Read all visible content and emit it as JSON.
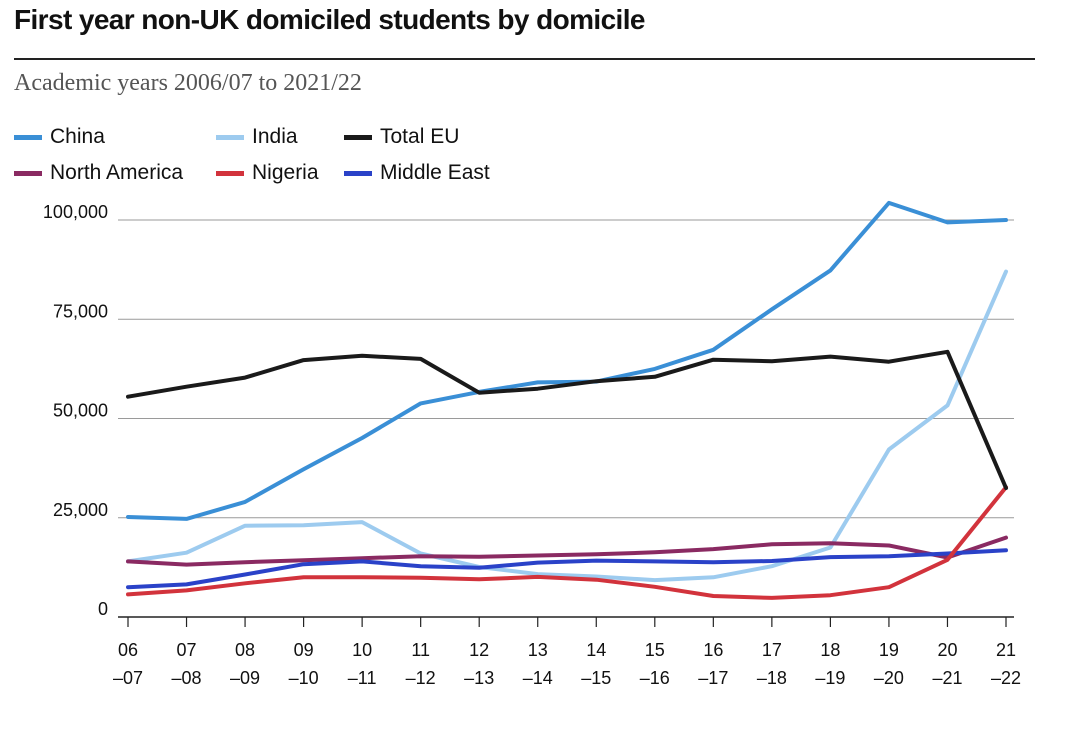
{
  "title": "First year non-UK domiciled students by domicile",
  "subtitle": "Academic years 2006/07 to 2021/22",
  "chart_data": {
    "type": "line",
    "title": "First year non-UK domiciled students by domicile",
    "subtitle": "Academic years 2006/07 to 2021/22",
    "xlabel": "",
    "ylabel": "",
    "ylim": [
      0,
      100000
    ],
    "y_ticks": [
      0,
      25000,
      50000,
      75000,
      100000
    ],
    "y_tick_labels": [
      "0",
      "25,000",
      "50,000",
      "75,000",
      "100,000"
    ],
    "categories_top": [
      "06",
      "07",
      "08",
      "09",
      "10",
      "11",
      "12",
      "13",
      "14",
      "15",
      "16",
      "17",
      "18",
      "19",
      "20",
      "21"
    ],
    "categories_bottom": [
      "–07",
      "–08",
      "–09",
      "–10",
      "–11",
      "–12",
      "–13",
      "–14",
      "–15",
      "–16",
      "–17",
      "–18",
      "–19",
      "–20",
      "–21",
      "–22"
    ],
    "grid": true,
    "series": [
      {
        "name": "China",
        "color": "#3a8fd6",
        "values": [
          25200,
          24700,
          29000,
          37200,
          45100,
          53800,
          56700,
          59100,
          59300,
          62500,
          67300,
          77500,
          87300,
          104300,
          99400,
          100000
        ]
      },
      {
        "name": "India",
        "color": "#9dcbef",
        "values": [
          14000,
          16200,
          23000,
          23100,
          23900,
          16000,
          12600,
          10800,
          10200,
          9300,
          10000,
          12800,
          17500,
          42200,
          53300,
          87000
        ]
      },
      {
        "name": "Total EU",
        "color": "#1a1a1a",
        "values": [
          55500,
          58000,
          60300,
          64700,
          65800,
          65000,
          56500,
          57500,
          59400,
          60500,
          64800,
          64400,
          65600,
          64300,
          66800,
          32500
        ]
      },
      {
        "name": "North America",
        "color": "#8a2a62",
        "values": [
          14000,
          13200,
          13800,
          14300,
          14800,
          15300,
          15200,
          15500,
          15800,
          16300,
          17100,
          18300,
          18600,
          18000,
          15000,
          20000
        ]
      },
      {
        "name": "Nigeria",
        "color": "#d2333c",
        "values": [
          5700,
          6700,
          8500,
          10000,
          10000,
          9900,
          9500,
          10100,
          9400,
          7600,
          5300,
          4800,
          5500,
          7500,
          14400,
          32700
        ]
      },
      {
        "name": "Middle East",
        "color": "#2a42c8",
        "values": [
          7500,
          8200,
          10700,
          13300,
          14000,
          12800,
          12400,
          13700,
          14200,
          14000,
          13800,
          14100,
          15100,
          15300,
          16000,
          16800
        ]
      }
    ]
  }
}
